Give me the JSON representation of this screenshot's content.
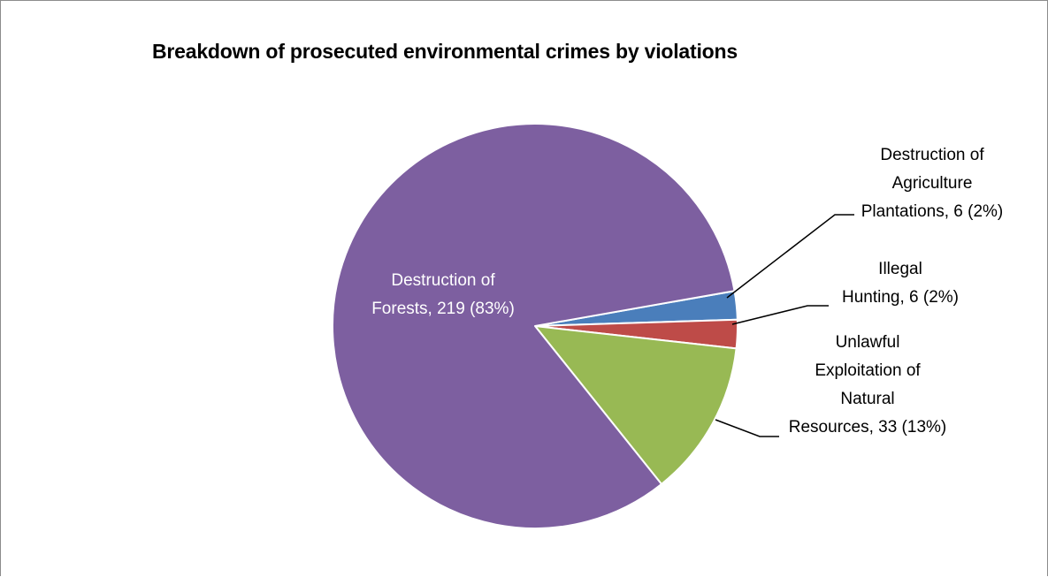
{
  "chart_data": {
    "type": "pie",
    "title": "Breakdown of prosecuted environmental crimes by violations",
    "start_angle_deg": 10,
    "slices": [
      {
        "name": "Destruction of Agriculture Plantations",
        "value": 6,
        "percent": "2%",
        "color": "#4a7ebb",
        "label_lines": [
          "Destruction of",
          "Agriculture",
          "Plantations, 6 (2%)"
        ],
        "label_position": "outside",
        "label_color": "#000000"
      },
      {
        "name": "Illegal Hunting",
        "value": 6,
        "percent": "2%",
        "color": "#be4b48",
        "label_lines": [
          "Illegal",
          "Hunting, 6 (2%)"
        ],
        "label_position": "outside",
        "label_color": "#000000"
      },
      {
        "name": "Unlawful Exploitation of Natural Resources",
        "value": 33,
        "percent": "13%",
        "color": "#98b954",
        "label_lines": [
          "Unlawful",
          "Exploitation of",
          "Natural",
          "Resources, 33 (13%)"
        ],
        "label_position": "outside",
        "label_color": "#000000"
      },
      {
        "name": "Destruction of Forests",
        "value": 219,
        "percent": "83%",
        "color": "#7d5fa0",
        "label_lines": [
          "Destruction of",
          "Forests, 219 (83%)"
        ],
        "label_position": "inside",
        "label_color": "#ffffff"
      }
    ],
    "legend": "none"
  }
}
